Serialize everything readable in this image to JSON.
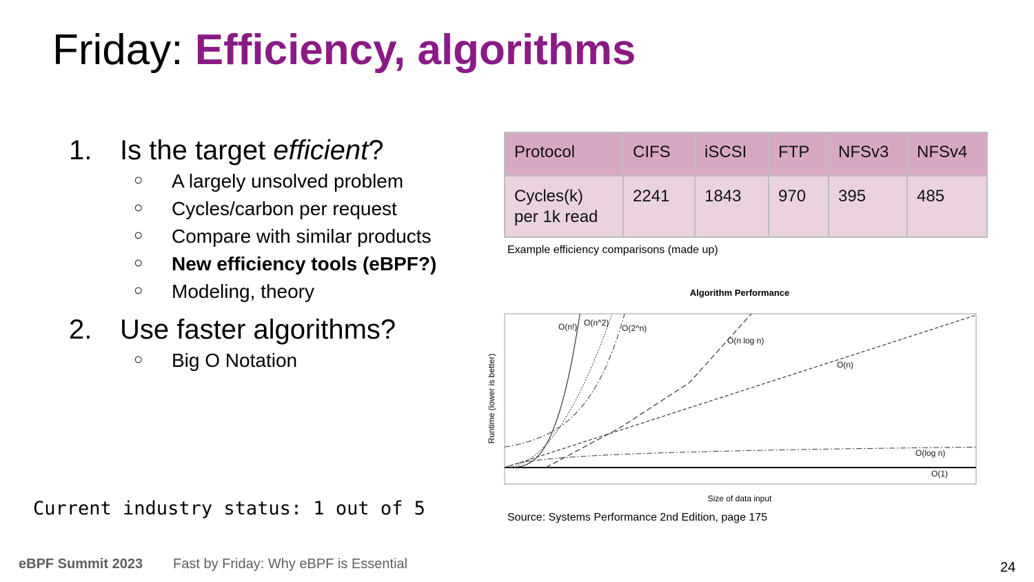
{
  "slide": {
    "title_prefix": "Friday: ",
    "title_accent": "Efficiency, algorithms",
    "list": [
      {
        "num": "1.",
        "text_before": "Is the target ",
        "text_em": "efficient",
        "text_after": "?",
        "sub": [
          {
            "text": "A largely unsolved problem",
            "bold": false
          },
          {
            "text": "Cycles/carbon per request",
            "bold": false
          },
          {
            "text": "Compare with similar products",
            "bold": false
          },
          {
            "text": "New efficiency tools (eBPF?)",
            "bold": true
          },
          {
            "text": "Modeling, theory",
            "bold": false
          }
        ]
      },
      {
        "num": "2.",
        "text": "Use faster algorithms?",
        "sub": [
          {
            "text": "Big O Notation",
            "bold": false
          }
        ]
      }
    ],
    "bullet_glyph": "○",
    "status": "Current industry status: 1 out of 5"
  },
  "table": {
    "header": [
      "Protocol",
      "CIFS",
      "iSCSI",
      "FTP",
      "NFSv3",
      "NFSv4"
    ],
    "row_label_line1": "Cycles(k)",
    "row_label_line2": "per 1k read",
    "values": [
      "2241",
      "1843",
      "970",
      "395",
      "485"
    ],
    "header_color": "#d7a8c4",
    "row_color": "#ead2df"
  },
  "table_caption": "Example efficiency comparisons (made up)",
  "chart_data": {
    "type": "line",
    "title": "Algorithm Performance",
    "xlabel": "Size of data input",
    "ylabel": "Runtime (lower is better)",
    "grid": false,
    "series": [
      {
        "name": "O(1)",
        "style": "solid"
      },
      {
        "name": "O(log n)",
        "style": "dash-dot"
      },
      {
        "name": "O(n)",
        "style": "dashed"
      },
      {
        "name": "O(n log n)",
        "style": "dashed"
      },
      {
        "name": "O(n^2)",
        "style": "dotted"
      },
      {
        "name": "O(2^n)",
        "style": "dash-dot"
      },
      {
        "name": "O(n!)",
        "style": "solid"
      }
    ]
  },
  "chart_caption": "Source: Systems Performance 2nd Edition, page 175",
  "footer": {
    "event": "eBPF Summit 2023",
    "talk": "Fast by Friday: Why eBPF is Essential",
    "page": "24"
  }
}
